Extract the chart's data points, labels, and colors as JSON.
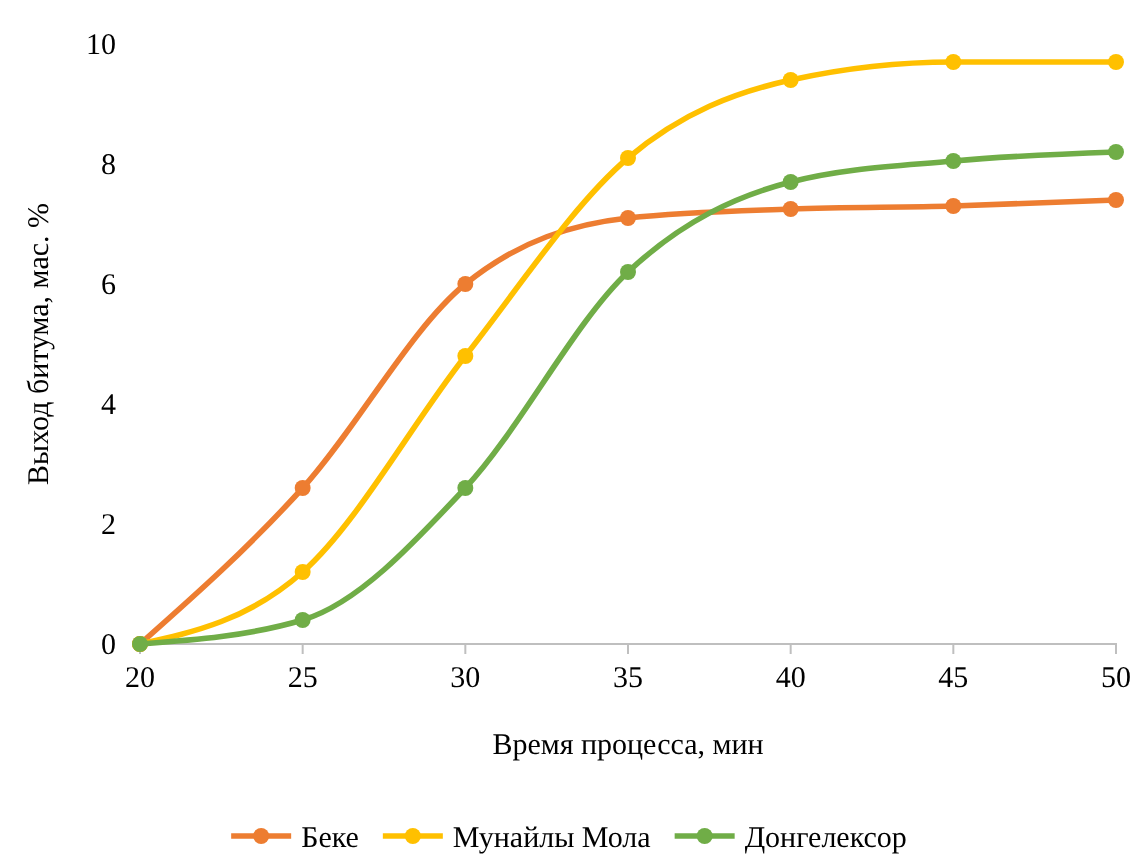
{
  "chart_data": {
    "type": "line",
    "xlabel": "Время процесса, мин",
    "ylabel": "Выход битума, мас. %",
    "x": [
      20,
      25,
      30,
      35,
      40,
      45,
      50
    ],
    "xlim": [
      20,
      50
    ],
    "xticks": [
      20,
      25,
      30,
      35,
      40,
      45,
      50
    ],
    "ylim": [
      0,
      10
    ],
    "yticks": [
      0,
      2,
      4,
      6,
      8,
      10
    ],
    "marker": "circle",
    "line_style": "solid",
    "legend": "bottom",
    "grid": false,
    "series": [
      {
        "name": "Беке",
        "color": "#ed7d31",
        "values": [
          0,
          2.6,
          6.0,
          7.1,
          7.25,
          7.3,
          7.4
        ]
      },
      {
        "name": "Мунайлы Мола",
        "color": "#ffc000",
        "values": [
          0,
          1.2,
          4.8,
          8.1,
          9.4,
          9.7,
          9.7
        ]
      },
      {
        "name": "Донгелексор",
        "color": "#70ad47",
        "values": [
          0,
          0.4,
          2.6,
          6.2,
          7.7,
          8.05,
          8.2
        ]
      }
    ]
  }
}
